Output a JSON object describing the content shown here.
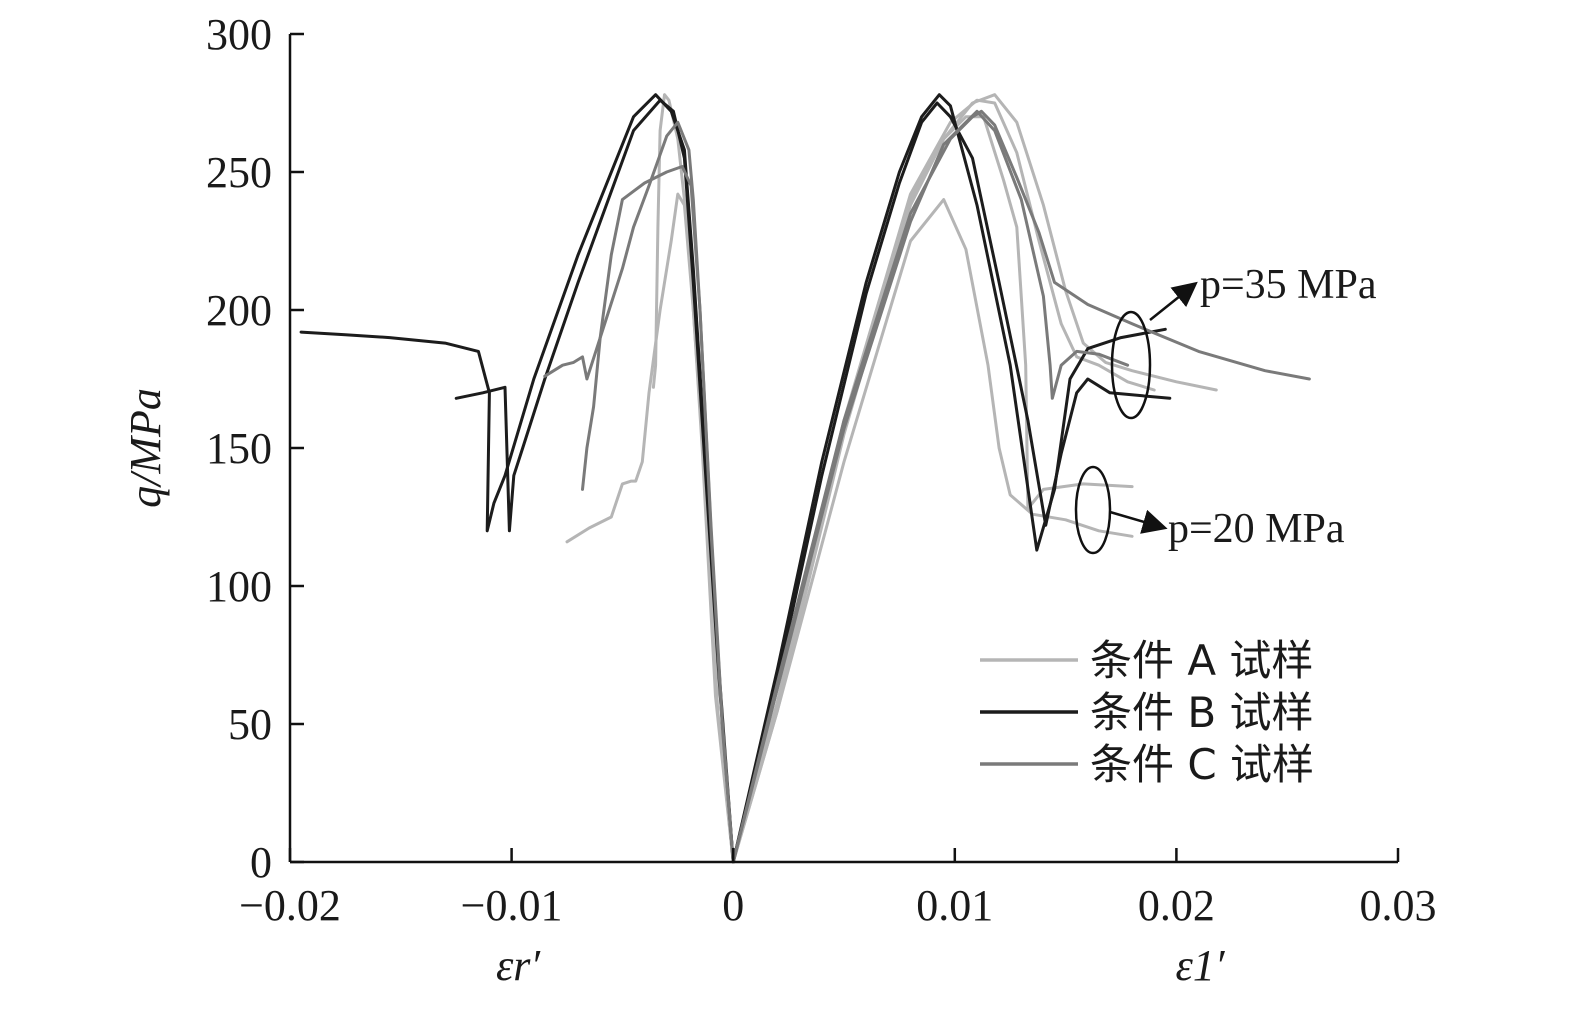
{
  "chart_data": {
    "type": "line",
    "ylabel": "q/MPa",
    "xlabel_left": "εr′",
    "xlabel_right": "ε1′",
    "xlim": [
      -0.02,
      0.03
    ],
    "ylim": [
      0,
      300
    ],
    "xticks": [
      -0.02,
      -0.01,
      0,
      0.01,
      0.02,
      0.03
    ],
    "xtick_labels": [
      "−0.02",
      "−0.01",
      "0",
      "0.01",
      "0.02",
      "0.03"
    ],
    "yticks": [
      0,
      50,
      100,
      150,
      200,
      250,
      300
    ],
    "ytick_labels": [
      "0",
      "50",
      "100",
      "150",
      "200",
      "250",
      "300"
    ],
    "grid": false,
    "legend_position": "lower-right",
    "colors": {
      "A": "#b5b5b5",
      "B": "#1c1c1c",
      "C": "#7a7a7a"
    },
    "legend": [
      {
        "key": "A",
        "label": "条件 A 试样"
      },
      {
        "key": "B",
        "label": "条件 B 试样"
      },
      {
        "key": "C",
        "label": "条件 C 试样"
      }
    ],
    "annotations": [
      {
        "text": "p=35 MPa"
      },
      {
        "text": "p=20 MPa"
      }
    ],
    "series": [
      {
        "key": "A",
        "side": "axial",
        "points": [
          [
            0,
            0
          ],
          [
            0.002,
            55
          ],
          [
            0.005,
            145
          ],
          [
            0.008,
            225
          ],
          [
            0.0095,
            240
          ],
          [
            0.0105,
            222
          ],
          [
            0.0115,
            180
          ],
          [
            0.012,
            150
          ],
          [
            0.0125,
            133
          ],
          [
            0.0135,
            126
          ],
          [
            0.015,
            124
          ],
          [
            0.0165,
            120
          ],
          [
            0.018,
            118
          ]
        ]
      },
      {
        "key": "A",
        "side": "axial",
        "points": [
          [
            0,
            0
          ],
          [
            0.002,
            55
          ],
          [
            0.005,
            155
          ],
          [
            0.008,
            238
          ],
          [
            0.0095,
            262
          ],
          [
            0.0108,
            275
          ],
          [
            0.0118,
            278
          ],
          [
            0.0128,
            268
          ],
          [
            0.014,
            238
          ],
          [
            0.015,
            207
          ],
          [
            0.0158,
            188
          ],
          [
            0.0168,
            181
          ],
          [
            0.018,
            178
          ],
          [
            0.02,
            174
          ],
          [
            0.0218,
            171
          ]
        ]
      },
      {
        "key": "A",
        "side": "axial",
        "points": [
          [
            0,
            0
          ],
          [
            0.002,
            58
          ],
          [
            0.005,
            160
          ],
          [
            0.008,
            242
          ],
          [
            0.0098,
            268
          ],
          [
            0.011,
            276
          ],
          [
            0.0118,
            275
          ],
          [
            0.0128,
            257
          ],
          [
            0.0138,
            225
          ],
          [
            0.0148,
            195
          ],
          [
            0.0155,
            183
          ],
          [
            0.0165,
            180
          ],
          [
            0.0178,
            174
          ],
          [
            0.019,
            171
          ]
        ]
      },
      {
        "key": "A",
        "side": "axial",
        "points": [
          [
            0,
            0
          ],
          [
            0.002,
            58
          ],
          [
            0.005,
            158
          ],
          [
            0.008,
            240
          ],
          [
            0.0095,
            262
          ],
          [
            0.0105,
            270
          ],
          [
            0.0113,
            270
          ],
          [
            0.0122,
            247
          ],
          [
            0.0128,
            230
          ],
          [
            0.0132,
            180
          ],
          [
            0.0133,
            128
          ],
          [
            0.014,
            135
          ],
          [
            0.0158,
            137
          ],
          [
            0.018,
            136
          ]
        ]
      },
      {
        "key": "A",
        "side": "radial",
        "points": [
          [
            0,
            0
          ],
          [
            -0.0007,
            55
          ],
          [
            -0.0012,
            130
          ],
          [
            -0.0018,
            200
          ],
          [
            -0.0022,
            238
          ],
          [
            -0.0025,
            242
          ],
          [
            -0.0028,
            225
          ],
          [
            -0.0033,
            200
          ],
          [
            -0.0038,
            170
          ],
          [
            -0.0041,
            145
          ],
          [
            -0.0044,
            138
          ],
          [
            -0.0046,
            138
          ],
          [
            -0.005,
            137
          ],
          [
            -0.0055,
            125
          ],
          [
            -0.0065,
            121
          ],
          [
            -0.0075,
            116
          ]
        ]
      },
      {
        "key": "A",
        "side": "radial",
        "points": [
          [
            0,
            0
          ],
          [
            -0.0008,
            60
          ],
          [
            -0.0014,
            150
          ],
          [
            -0.002,
            225
          ],
          [
            -0.0025,
            262
          ],
          [
            -0.0029,
            276
          ],
          [
            -0.0031,
            278
          ],
          [
            -0.0033,
            265
          ],
          [
            -0.0034,
            230
          ],
          [
            -0.0035,
            180
          ],
          [
            -0.0036,
            172
          ]
        ]
      },
      {
        "key": "B",
        "side": "axial",
        "points": [
          [
            0,
            0
          ],
          [
            0.002,
            70
          ],
          [
            0.004,
            145
          ],
          [
            0.006,
            210
          ],
          [
            0.0075,
            250
          ],
          [
            0.0085,
            270
          ],
          [
            0.0093,
            278
          ],
          [
            0.0098,
            274
          ],
          [
            0.011,
            238
          ],
          [
            0.0125,
            180
          ],
          [
            0.0137,
            113
          ],
          [
            0.0145,
            135
          ],
          [
            0.0152,
            175
          ],
          [
            0.016,
            186
          ],
          [
            0.0175,
            190
          ],
          [
            0.0195,
            193
          ]
        ]
      },
      {
        "key": "B",
        "side": "axial",
        "points": [
          [
            0,
            0
          ],
          [
            0.002,
            66
          ],
          [
            0.004,
            140
          ],
          [
            0.006,
            206
          ],
          [
            0.0075,
            246
          ],
          [
            0.0085,
            268
          ],
          [
            0.0092,
            275
          ],
          [
            0.0098,
            270
          ],
          [
            0.0108,
            255
          ],
          [
            0.012,
            210
          ],
          [
            0.0133,
            160
          ],
          [
            0.0141,
            122
          ],
          [
            0.0148,
            148
          ],
          [
            0.0155,
            170
          ],
          [
            0.016,
            175
          ],
          [
            0.017,
            170
          ],
          [
            0.0197,
            168
          ]
        ]
      },
      {
        "key": "B",
        "side": "radial",
        "points": [
          [
            0,
            0
          ],
          [
            -0.0006,
            65
          ],
          [
            -0.0012,
            140
          ],
          [
            -0.0018,
            215
          ],
          [
            -0.0022,
            258
          ],
          [
            -0.0028,
            272
          ],
          [
            -0.0035,
            278
          ],
          [
            -0.0045,
            270
          ],
          [
            -0.007,
            220
          ],
          [
            -0.009,
            175
          ],
          [
            -0.0103,
            140
          ],
          [
            -0.0108,
            130
          ],
          [
            -0.0111,
            120
          ],
          [
            -0.011,
            170
          ],
          [
            -0.0115,
            185
          ],
          [
            -0.013,
            188
          ],
          [
            -0.0155,
            190
          ],
          [
            -0.0175,
            191
          ],
          [
            -0.0195,
            192
          ]
        ]
      },
      {
        "key": "B",
        "side": "radial",
        "points": [
          [
            0,
            0
          ],
          [
            -0.0006,
            62
          ],
          [
            -0.0012,
            135
          ],
          [
            -0.0018,
            210
          ],
          [
            -0.0022,
            255
          ],
          [
            -0.0027,
            272
          ],
          [
            -0.0033,
            276
          ],
          [
            -0.0045,
            265
          ],
          [
            -0.007,
            210
          ],
          [
            -0.0085,
            175
          ],
          [
            -0.0095,
            150
          ],
          [
            -0.0099,
            140
          ],
          [
            -0.0101,
            120
          ],
          [
            -0.0103,
            172
          ],
          [
            -0.0113,
            170
          ],
          [
            -0.0125,
            168
          ]
        ]
      },
      {
        "key": "C",
        "side": "axial",
        "points": [
          [
            0,
            0
          ],
          [
            0.002,
            65
          ],
          [
            0.005,
            160
          ],
          [
            0.008,
            235
          ],
          [
            0.0098,
            262
          ],
          [
            0.0108,
            270
          ],
          [
            0.0112,
            272
          ],
          [
            0.0118,
            267
          ],
          [
            0.0128,
            248
          ],
          [
            0.0138,
            228
          ],
          [
            0.0145,
            210
          ],
          [
            0.016,
            202
          ],
          [
            0.018,
            195
          ],
          [
            0.021,
            185
          ],
          [
            0.024,
            178
          ],
          [
            0.026,
            175
          ]
        ]
      },
      {
        "key": "C",
        "side": "axial",
        "points": [
          [
            0,
            0
          ],
          [
            0.002,
            63
          ],
          [
            0.005,
            157
          ],
          [
            0.008,
            232
          ],
          [
            0.0095,
            260
          ],
          [
            0.0105,
            268
          ],
          [
            0.011,
            272
          ],
          [
            0.0118,
            265
          ],
          [
            0.013,
            240
          ],
          [
            0.014,
            205
          ],
          [
            0.0143,
            180
          ],
          [
            0.0144,
            168
          ],
          [
            0.0148,
            180
          ],
          [
            0.0155,
            185
          ],
          [
            0.0165,
            184
          ],
          [
            0.0178,
            180
          ]
        ]
      },
      {
        "key": "C",
        "side": "radial",
        "points": [
          [
            0,
            0
          ],
          [
            -0.0005,
            50
          ],
          [
            -0.001,
            120
          ],
          [
            -0.0015,
            200
          ],
          [
            -0.0018,
            240
          ],
          [
            -0.002,
            258
          ],
          [
            -0.0025,
            268
          ],
          [
            -0.003,
            263
          ],
          [
            -0.0038,
            245
          ],
          [
            -0.0045,
            230
          ],
          [
            -0.005,
            215
          ],
          [
            -0.0056,
            200
          ],
          [
            -0.0062,
            185
          ],
          [
            -0.0066,
            175
          ],
          [
            -0.0068,
            183
          ],
          [
            -0.0072,
            181
          ],
          [
            -0.0077,
            180
          ],
          [
            -0.0085,
            176
          ]
        ]
      },
      {
        "key": "C",
        "side": "radial",
        "points": [
          [
            0,
            0
          ],
          [
            -0.0005,
            52
          ],
          [
            -0.001,
            122
          ],
          [
            -0.0015,
            200
          ],
          [
            -0.0019,
            245
          ],
          [
            -0.0023,
            252
          ],
          [
            -0.003,
            250
          ],
          [
            -0.004,
            246
          ],
          [
            -0.005,
            240
          ],
          [
            -0.0055,
            220
          ],
          [
            -0.006,
            190
          ],
          [
            -0.0063,
            165
          ],
          [
            -0.0066,
            150
          ],
          [
            -0.0068,
            135
          ]
        ]
      }
    ]
  }
}
